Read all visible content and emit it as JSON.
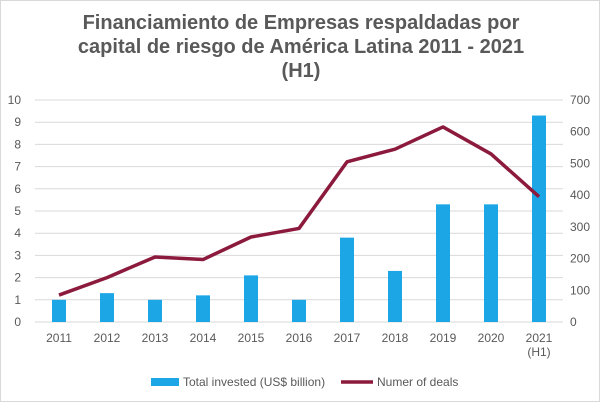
{
  "chart_data": {
    "type": "bar",
    "title_lines": [
      "Financiamiento de Empresas respaldadas por",
      "capital de riesgo de América Latina 2011 - 2021",
      "(H1)"
    ],
    "categories": [
      "2011",
      "2012",
      "2013",
      "2014",
      "2015",
      "2016",
      "2017",
      "2018",
      "2019",
      "2020",
      "2021"
    ],
    "category_sublabels": [
      "",
      "",
      "",
      "",
      "",
      "",
      "",
      "",
      "",
      "",
      "(H1)"
    ],
    "series": [
      {
        "name": "Total invested (US$ billion)",
        "type": "bar",
        "axis": "left",
        "color": "#1ca6e6",
        "values": [
          1.0,
          1.3,
          1.0,
          1.2,
          2.1,
          1.0,
          3.8,
          2.3,
          5.3,
          5.3,
          9.3
        ]
      },
      {
        "name": "Numer of deals",
        "type": "line",
        "axis": "right",
        "color": "#8b1a3c",
        "values": [
          85,
          140,
          205,
          197,
          268,
          295,
          505,
          545,
          615,
          530,
          395
        ]
      }
    ],
    "y_left": {
      "min": 0,
      "max": 10,
      "step": 1,
      "ticks": [
        "0",
        "1",
        "2",
        "3",
        "4",
        "5",
        "6",
        "7",
        "8",
        "9",
        "10"
      ]
    },
    "y_right": {
      "min": 0,
      "max": 700,
      "step": 100,
      "ticks": [
        "0",
        "100",
        "200",
        "300",
        "400",
        "500",
        "600",
        "700"
      ]
    },
    "gridlines": true,
    "legend_position": "bottom"
  }
}
